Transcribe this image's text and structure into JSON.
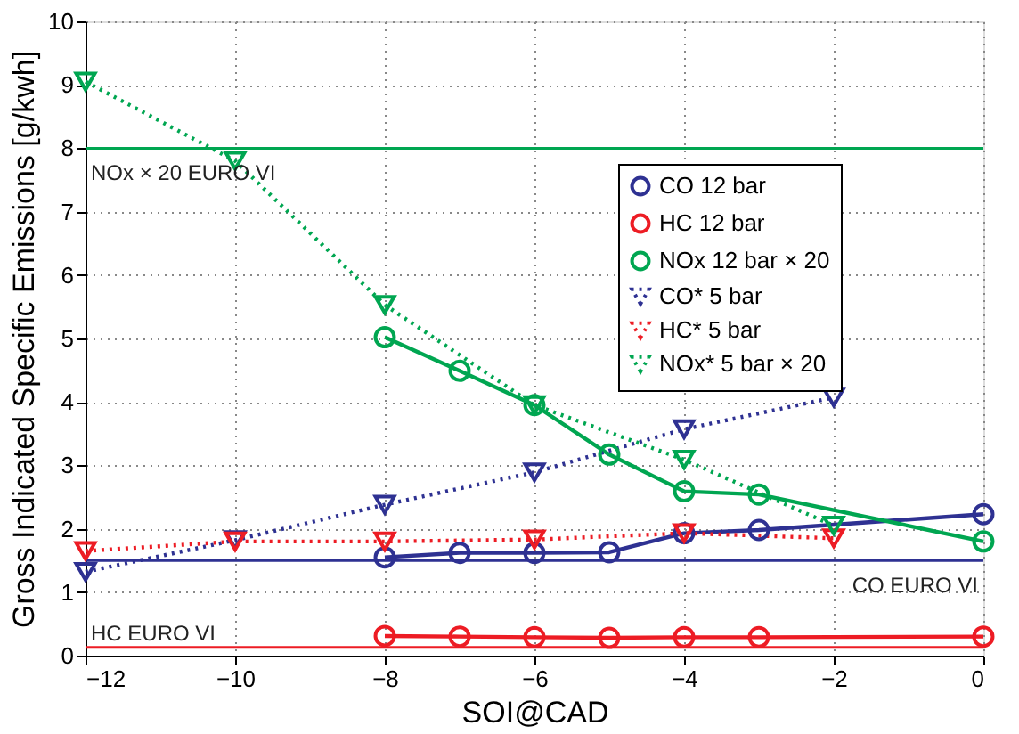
{
  "chart_data": {
    "type": "line",
    "xlabel": "SOI@CAD",
    "ylabel": "Gross Indicated Specific Emissions [g/kwh]",
    "xlim": [
      -12,
      0
    ],
    "xticks": [
      -12,
      -10,
      -8,
      -6,
      -4,
      -2,
      0
    ],
    "ylim": [
      0,
      10
    ],
    "yticks": [
      0,
      1,
      2,
      3,
      4,
      5,
      6,
      7,
      8,
      9,
      10
    ],
    "grid": true,
    "legend": "top right",
    "series": [
      {
        "name": "CO 12 bar",
        "color": "#2e3192",
        "marker": "circle",
        "line_style": "solid",
        "x": [
          -8,
          -7,
          -6,
          -5,
          -4,
          -3,
          0
        ],
        "values": [
          1.55,
          1.62,
          1.62,
          1.63,
          1.93,
          1.98,
          2.23
        ]
      },
      {
        "name": "HC 12 bar",
        "color": "#ed1c24",
        "marker": "circle",
        "line_style": "solid",
        "x": [
          -8,
          -7,
          -6,
          -5,
          -4,
          -3,
          0
        ],
        "values": [
          0.31,
          0.3,
          0.29,
          0.28,
          0.29,
          0.29,
          0.3
        ]
      },
      {
        "name": "NOx 12 bar × 20",
        "color": "#00a651",
        "marker": "circle",
        "line_style": "solid",
        "x": [
          -8,
          -7,
          -6,
          -5,
          -4,
          -3,
          0
        ],
        "values": [
          5.02,
          4.49,
          3.95,
          3.17,
          2.59,
          2.54,
          1.8
        ]
      },
      {
        "name": "CO* 5 bar",
        "color": "#2e3192",
        "marker": "triangle",
        "line_style": "dotted",
        "x": [
          -12,
          -10,
          -8,
          -6,
          -4,
          -2
        ],
        "values": [
          1.32,
          1.82,
          2.38,
          2.89,
          3.57,
          4.07
        ]
      },
      {
        "name": "HC* 5 bar",
        "color": "#ed1c24",
        "marker": "triangle",
        "line_style": "dotted",
        "x": [
          -12,
          -10,
          -8,
          -6,
          -4,
          -2
        ],
        "values": [
          1.65,
          1.8,
          1.8,
          1.83,
          1.93,
          1.85
        ]
      },
      {
        "name": "NOx* 5 bar × 20",
        "color": "#00a651",
        "marker": "triangle",
        "line_style": "dotted",
        "x": [
          -12,
          -10,
          -8,
          -6,
          -4,
          -2
        ],
        "values": [
          9.05,
          7.8,
          5.53,
          3.95,
          3.09,
          2.05
        ]
      }
    ],
    "ref_lines": [
      {
        "axis": "y",
        "value": 8,
        "label": "NOx × 20 EURO VI",
        "color": "#00a651",
        "line_style": "solid"
      },
      {
        "axis": "y",
        "value": 1.5,
        "label": "CO EURO VI",
        "color": "#2e3192",
        "line_style": "solid"
      },
      {
        "axis": "y",
        "value": 0.13,
        "label": "HC EURO VI",
        "color": "#ed1c24",
        "line_style": "solid"
      }
    ]
  }
}
